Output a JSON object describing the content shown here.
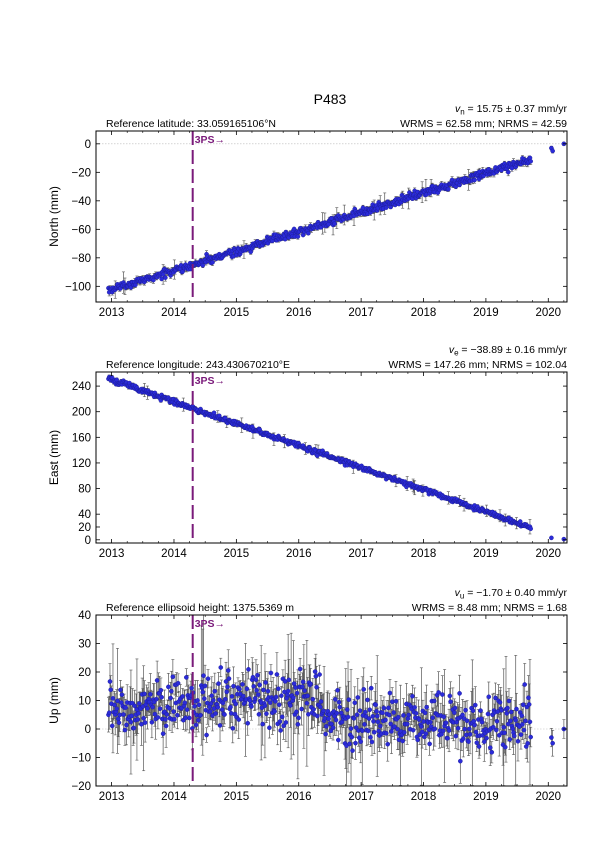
{
  "page_title": "P483",
  "colors": {
    "marker": "#2b2bd9",
    "marker_edge": "#1a1a90",
    "errorbar": "#555555",
    "event": "#7a1a7a",
    "zero_line": "#bbbbbb"
  },
  "chart_data": [
    {
      "type": "scatter",
      "component": "north",
      "ylabel": "North (mm)",
      "header_left": "Reference latitude: 33.059165106°N",
      "rate_symbol": "v",
      "rate_subscript": "n",
      "rate_text": " = 15.75 ± 0.37 mm/yr",
      "stats_text": "WRMS = 62.58 mm; NRMS = 42.59",
      "xlim": [
        2012.75,
        2020.3
      ],
      "ylim": [
        -111,
        9
      ],
      "xticks": [
        2013,
        2014,
        2015,
        2016,
        2017,
        2018,
        2019,
        2020
      ],
      "yticks": [
        -100,
        -80,
        -60,
        -40,
        -20,
        0
      ],
      "grid": false,
      "zero_line": true,
      "event": {
        "x": 2014.3,
        "label": "3PS→"
      },
      "series": [
        {
          "x_start": 2012.95,
          "x_end": 2019.72,
          "y_start": -103,
          "y_end": -11,
          "scatter": 1.5,
          "error": 2
        },
        {
          "points": [
            [
              2020.05,
              -3
            ],
            [
              2020.07,
              -5
            ],
            [
              2020.25,
              0
            ]
          ],
          "error": 1.5
        }
      ]
    },
    {
      "type": "scatter",
      "component": "east",
      "ylabel": "East (mm)",
      "header_left": "Reference longitude: 243.430670210°E",
      "rate_symbol": "v",
      "rate_subscript": "e",
      "rate_text": " = −38.89 ± 0.16 mm/yr",
      "stats_text": "WRMS = 147.26 mm; NRMS = 102.04",
      "xlim": [
        2012.75,
        2020.3
      ],
      "ylim": [
        -5,
        262
      ],
      "xticks": [
        2013,
        2014,
        2015,
        2016,
        2017,
        2018,
        2019,
        2020
      ],
      "yticks": [
        0,
        20,
        40,
        80,
        120,
        160,
        200,
        240
      ],
      "grid": false,
      "zero_line": false,
      "event": {
        "x": 2014.3,
        "label": "3PS→"
      },
      "series": [
        {
          "x_start": 2012.95,
          "x_end": 2019.72,
          "y_start": 252,
          "y_end": 19,
          "scatter": 2,
          "error": 3
        },
        {
          "points": [
            [
              2020.05,
              3
            ],
            [
              2020.25,
              1
            ]
          ],
          "error": 1.5
        }
      ]
    },
    {
      "type": "scatter",
      "component": "up",
      "ylabel": "Up (mm)",
      "header_left": "Reference ellipsoid height: 1375.5369 m",
      "rate_symbol": "v",
      "rate_subscript": "u",
      "rate_text": " = −1.70 ± 0.40 mm/yr",
      "stats_text": "WRMS = 8.48 mm; NRMS = 1.68",
      "xlim": [
        2012.75,
        2020.3
      ],
      "ylim": [
        -20,
        40
      ],
      "xticks": [
        2013,
        2014,
        2015,
        2016,
        2017,
        2018,
        2019,
        2020
      ],
      "yticks": [
        -20,
        -10,
        0,
        10,
        20,
        30,
        40
      ],
      "grid": false,
      "zero_line": true,
      "event": {
        "x": 2014.3,
        "label": "3PS→"
      },
      "series": [
        {
          "x_start": 2012.95,
          "x_end": 2019.72,
          "profile": [
            [
              2012.95,
              6
            ],
            [
              2013.5,
              7
            ],
            [
              2014.0,
              9
            ],
            [
              2014.5,
              10
            ],
            [
              2015.5,
              10
            ],
            [
              2016.3,
              10
            ],
            [
              2016.5,
              4
            ],
            [
              2017.5,
              3
            ],
            [
              2018.5,
              3
            ],
            [
              2019.0,
              2
            ],
            [
              2019.72,
              2
            ]
          ],
          "scatter": 5,
          "error": 6
        },
        {
          "points": [
            [
              2020.05,
              -3
            ],
            [
              2020.07,
              -5
            ],
            [
              2020.25,
              0
            ]
          ],
          "error": 4
        }
      ]
    }
  ]
}
